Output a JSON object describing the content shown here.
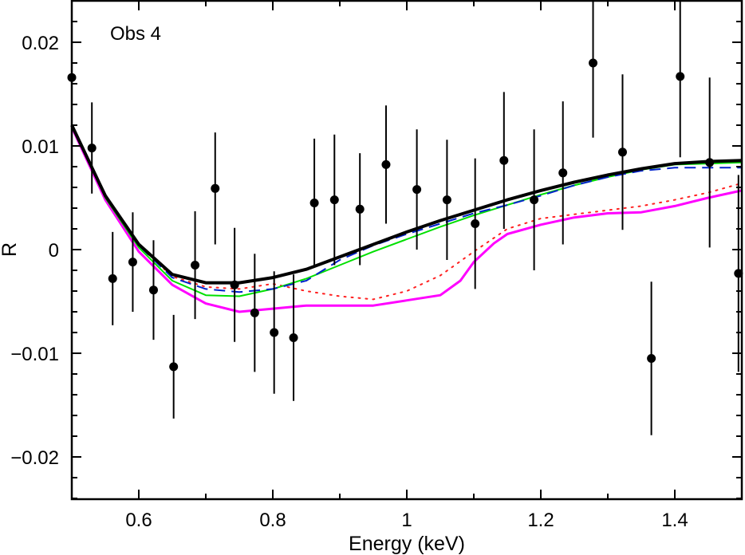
{
  "chart_data": {
    "type": "scatter",
    "title": "",
    "annotation": "Obs 4",
    "xlabel": "Energy (keV)",
    "ylabel": "R",
    "xlim": [
      0.5,
      1.5
    ],
    "ylim": [
      -0.024,
      0.024
    ],
    "xticks": [
      0.6,
      0.8,
      1.0,
      1.2,
      1.4
    ],
    "xtick_labels": [
      "0.6",
      "0.8",
      "1",
      "1.2",
      "1.4"
    ],
    "yticks": [
      0.02,
      0.01,
      0,
      -0.01,
      -0.02
    ],
    "ytick_labels": [
      "0.02",
      "0.01",
      "0",
      "−0.01",
      "−0.02"
    ],
    "grid": false,
    "points": {
      "name": "data",
      "x": [
        0.5,
        0.53,
        0.561,
        0.591,
        0.622,
        0.652,
        0.684,
        0.714,
        0.743,
        0.773,
        0.802,
        0.831,
        0.862,
        0.892,
        0.93,
        0.969,
        1.015,
        1.06,
        1.102,
        1.145,
        1.19,
        1.233,
        1.278,
        1.322,
        1.365,
        1.408,
        1.452,
        1.495
      ],
      "y": [
        0.0166,
        0.0098,
        -0.0028,
        -0.0012,
        -0.0039,
        -0.0113,
        -0.0015,
        0.0059,
        -0.0034,
        -0.0061,
        -0.008,
        -0.0085,
        0.0045,
        0.0048,
        0.0039,
        0.0082,
        0.0058,
        0.0048,
        0.0025,
        0.0086,
        0.0048,
        0.0074,
        0.018,
        0.0094,
        -0.0105,
        0.0167,
        0.0084,
        -0.0023
      ],
      "err": [
        0.005,
        0.0044,
        0.0045,
        0.0048,
        0.0048,
        0.005,
        0.0052,
        0.0054,
        0.0055,
        0.0057,
        0.0059,
        0.0061,
        0.0062,
        0.0063,
        0.0054,
        0.0057,
        0.0058,
        0.0058,
        0.0063,
        0.0066,
        0.0068,
        0.0069,
        0.0072,
        0.0075,
        0.0074,
        0.0078,
        0.0082,
        0.0095
      ]
    },
    "series": [
      {
        "name": "model-black",
        "color": "#000000",
        "style": "solid",
        "width": 4,
        "x": [
          0.5,
          0.55,
          0.6,
          0.65,
          0.7,
          0.75,
          0.8,
          0.85,
          0.9,
          0.95,
          1.0,
          1.05,
          1.1,
          1.15,
          1.2,
          1.25,
          1.3,
          1.35,
          1.4,
          1.45,
          1.5
        ],
        "y": [
          0.012,
          0.0052,
          0.0005,
          -0.0024,
          -0.0032,
          -0.0032,
          -0.0027,
          -0.0019,
          -0.0007,
          0.0005,
          0.0017,
          0.0028,
          0.0038,
          0.0048,
          0.0057,
          0.0065,
          0.0072,
          0.0078,
          0.0083,
          0.0085,
          0.0086
        ]
      },
      {
        "name": "model-green",
        "color": "#00e000",
        "style": "solid",
        "width": 2,
        "x": [
          0.5,
          0.55,
          0.6,
          0.65,
          0.7,
          0.75,
          0.8,
          0.85,
          0.9,
          0.95,
          1.0,
          1.05,
          1.1,
          1.15,
          1.2,
          1.25,
          1.3,
          1.35,
          1.4,
          1.45,
          1.5
        ],
        "y": [
          0.012,
          0.005,
          0.0002,
          -0.003,
          -0.0044,
          -0.0045,
          -0.0038,
          -0.0028,
          -0.0015,
          -0.0002,
          0.001,
          0.0022,
          0.0033,
          0.0043,
          0.0053,
          0.0062,
          0.007,
          0.0077,
          0.0082,
          0.0083,
          0.0084
        ]
      },
      {
        "name": "model-blue-dashed",
        "color": "#0022cc",
        "style": "dashed",
        "width": 2,
        "x": [
          0.5,
          0.55,
          0.6,
          0.65,
          0.7,
          0.75,
          0.8,
          0.85,
          0.9,
          0.95,
          1.0,
          1.05,
          1.1,
          1.15,
          1.2,
          1.25,
          1.3,
          1.35,
          1.4,
          1.45,
          1.5
        ],
        "y": [
          0.012,
          0.0052,
          0.0004,
          -0.0027,
          -0.0038,
          -0.0041,
          -0.0038,
          -0.003,
          -0.001,
          0.0004,
          0.0015,
          0.0025,
          0.0035,
          0.0043,
          0.0052,
          0.0062,
          0.007,
          0.0076,
          0.0079,
          0.0079,
          0.0079
        ]
      },
      {
        "name": "model-red-dotted",
        "color": "#ff2020",
        "style": "dotted",
        "width": 2,
        "x": [
          0.5,
          0.55,
          0.6,
          0.65,
          0.7,
          0.75,
          0.8,
          0.85,
          0.9,
          0.95,
          1.0,
          1.05,
          1.1,
          1.15,
          1.2,
          1.25,
          1.3,
          1.35,
          1.4,
          1.45,
          1.5
        ],
        "y": [
          0.012,
          0.0052,
          0.0004,
          -0.0026,
          -0.0036,
          -0.0038,
          -0.0033,
          -0.004,
          -0.0045,
          -0.0048,
          -0.004,
          -0.0025,
          -0.0002,
          0.002,
          0.003,
          0.0034,
          0.0038,
          0.0042,
          0.0048,
          0.0055,
          0.0064
        ]
      },
      {
        "name": "model-magenta",
        "color": "#ff00ff",
        "style": "solid",
        "width": 3,
        "x": [
          0.5,
          0.55,
          0.6,
          0.65,
          0.7,
          0.75,
          0.8,
          0.85,
          0.9,
          0.95,
          1.0,
          1.05,
          1.08,
          1.1,
          1.13,
          1.15,
          1.2,
          1.25,
          1.3,
          1.35,
          1.4,
          1.45,
          1.5
        ],
        "y": [
          0.0118,
          0.0048,
          -0.0002,
          -0.0034,
          -0.0052,
          -0.006,
          -0.0057,
          -0.0054,
          -0.0054,
          -0.0054,
          -0.0049,
          -0.0044,
          -0.003,
          -0.0012,
          0.0006,
          0.0015,
          0.0024,
          0.0031,
          0.0035,
          0.0036,
          0.0042,
          0.005,
          0.0057
        ]
      }
    ]
  }
}
